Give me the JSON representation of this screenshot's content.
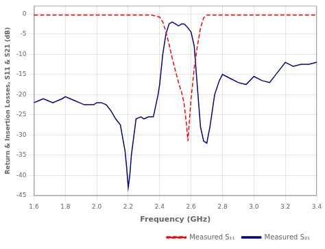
{
  "chart_data": {
    "type": "line",
    "xlabel": "Frequency (GHz)",
    "ylabel": "Return & Insertion Losses, S11 & S21 (dB)",
    "xlim": [
      1.6,
      3.4
    ],
    "ylim": [
      -45,
      2
    ],
    "xticks": [
      1.6,
      1.8,
      {
        "value": 2.0,
        "label": "2.0"
      },
      2.2,
      2.4,
      2.6,
      2.8,
      {
        "value": 3.0,
        "label": "3.0"
      },
      3.2,
      3.4
    ],
    "yticks": [
      0,
      -5,
      -10,
      -15,
      -20,
      -25,
      -30,
      -35,
      -40,
      -45
    ],
    "grid": true,
    "legend": "lower right",
    "series": [
      {
        "name": "Measured S₁₁",
        "color": "#FF0000",
        "line_style": "dashed",
        "x": [
          1.6,
          1.65,
          1.7,
          1.75,
          1.8,
          1.85,
          1.9,
          1.95,
          2.0,
          2.05,
          2.1,
          2.15,
          2.2,
          2.25,
          2.3,
          2.35,
          2.4,
          2.42,
          2.44,
          2.46,
          2.48,
          2.5,
          2.52,
          2.54,
          2.555,
          2.57,
          2.58,
          2.6,
          2.62,
          2.64,
          2.66,
          2.68,
          2.7,
          2.75,
          2.8,
          2.85,
          2.9,
          2.95,
          3.0,
          3.1,
          3.2,
          3.3,
          3.4
        ],
        "values": [
          -0.3,
          -0.3,
          -0.3,
          -0.3,
          -0.3,
          -0.3,
          -0.3,
          -0.3,
          -0.3,
          -0.3,
          -0.3,
          -0.3,
          -0.3,
          -0.3,
          -0.3,
          -0.3,
          -0.8,
          -2.0,
          -4.5,
          -7.5,
          -11.0,
          -14.0,
          -17.0,
          -19.5,
          -22.0,
          -27.0,
          -31.5,
          -21.0,
          -13.5,
          -8.0,
          -3.5,
          -1.0,
          -0.3,
          -0.3,
          -0.3,
          -0.3,
          -0.3,
          -0.3,
          -0.3,
          -0.3,
          -0.3,
          -0.3,
          -0.3
        ]
      },
      {
        "name": "Measured S₂₁",
        "color": "#00008B",
        "line_style": "solid",
        "x": [
          1.6,
          1.63,
          1.66,
          1.69,
          1.72,
          1.75,
          1.78,
          1.8,
          1.83,
          1.86,
          1.89,
          1.92,
          1.95,
          1.98,
          2.0,
          2.03,
          2.06,
          2.09,
          2.12,
          2.15,
          2.18,
          2.19,
          2.2,
          2.21,
          2.22,
          2.25,
          2.28,
          2.3,
          2.33,
          2.36,
          2.39,
          2.4,
          2.42,
          2.44,
          2.46,
          2.48,
          2.5,
          2.52,
          2.54,
          2.555,
          2.57,
          2.58,
          2.6,
          2.62,
          2.64,
          2.66,
          2.68,
          2.7,
          2.72,
          2.75,
          2.78,
          2.8,
          2.85,
          2.9,
          2.95,
          3.0,
          3.05,
          3.1,
          3.15,
          3.2,
          3.25,
          3.3,
          3.35,
          3.4
        ],
        "values": [
          -22.0,
          -21.5,
          -21.0,
          -21.5,
          -22.0,
          -21.5,
          -21.0,
          -20.5,
          -21.0,
          -21.5,
          -22.0,
          -22.5,
          -22.5,
          -22.5,
          -22.0,
          -22.0,
          -22.5,
          -24.0,
          -26.0,
          -27.5,
          -34.0,
          -38.0,
          -43.0,
          -40.0,
          -35.0,
          -26.0,
          -25.5,
          -26.0,
          -25.5,
          -25.5,
          -20.0,
          -17.5,
          -10.0,
          -5.0,
          -2.5,
          -2.0,
          -2.5,
          -3.0,
          -2.5,
          -2.5,
          -3.0,
          -3.5,
          -4.5,
          -8.0,
          -18.0,
          -28.0,
          -31.5,
          -32.0,
          -28.0,
          -20.0,
          -16.5,
          -15.0,
          -16.0,
          -17.0,
          -17.5,
          -15.5,
          -16.5,
          -17.0,
          -14.5,
          -12.0,
          -13.0,
          -12.5,
          -12.5,
          -12.0
        ]
      }
    ]
  }
}
